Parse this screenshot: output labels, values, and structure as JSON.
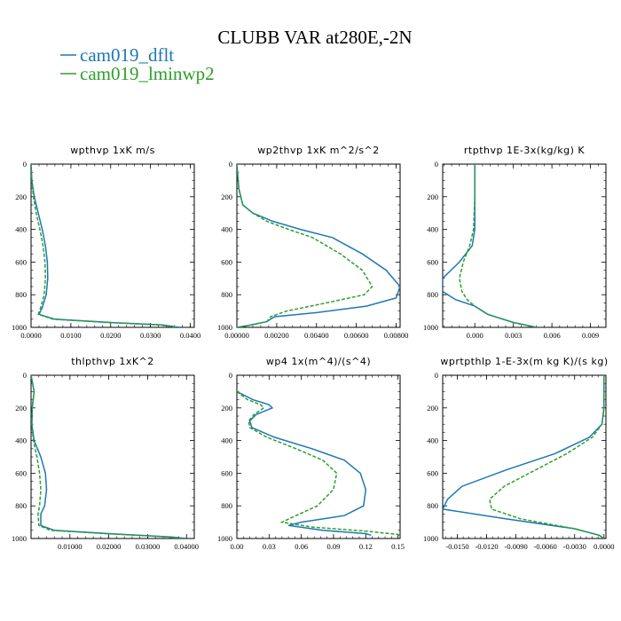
{
  "figure": {
    "title": "CLUBB VAR at280E,-2N",
    "legend": [
      {
        "label": "cam019_dflt",
        "color": "#1f77b4"
      },
      {
        "label": "cam019_lminwp2",
        "color": "#2ca02c"
      }
    ]
  },
  "chart_data": [
    {
      "type": "line",
      "title": "wpthvp  1xK m/s",
      "xlim": [
        0,
        0.041
      ],
      "ylim": [
        1000,
        0
      ],
      "y_inverted": true,
      "xticks": [
        "0.0000",
        "0.0100",
        "0.0200",
        "0.0300",
        "0.0400"
      ],
      "xtick_values": [
        0,
        0.01,
        0.02,
        0.03,
        0.04
      ],
      "yticks": [
        "0",
        "200",
        "400",
        "600",
        "800",
        "1000"
      ],
      "series": [
        {
          "name": "cam019_dflt",
          "color": "#1f77b4",
          "x": [
            0.0,
            0.0002,
            0.0008,
            0.0018,
            0.0028,
            0.0036,
            0.0041,
            0.0042,
            0.0038,
            0.0028,
            0.002,
            0.006,
            0.02,
            0.033,
            0.0372
          ],
          "y": [
            0,
            100,
            200,
            300,
            400,
            500,
            600,
            700,
            800,
            880,
            920,
            950,
            970,
            985,
            1000
          ]
        },
        {
          "name": "cam019_lminwp2",
          "color": "#2ca02c",
          "x": [
            0.0,
            0.0002,
            0.0006,
            0.0013,
            0.0022,
            0.003,
            0.0035,
            0.0036,
            0.0033,
            0.0024,
            0.0018,
            0.0055,
            0.019,
            0.032,
            0.0365
          ],
          "y": [
            0,
            100,
            200,
            300,
            400,
            500,
            600,
            700,
            800,
            880,
            920,
            950,
            970,
            985,
            1000
          ]
        }
      ]
    },
    {
      "type": "line",
      "title": "wp2thvp  1xK m^2/s^2",
      "xlim": [
        0,
        0.0082
      ],
      "ylim": [
        1000,
        0
      ],
      "y_inverted": true,
      "xticks": [
        "0.00000",
        "0.00200",
        "0.00400",
        "0.00600",
        "0.00800"
      ],
      "xtick_values": [
        0,
        0.002,
        0.004,
        0.006,
        0.008
      ],
      "yticks": [
        "0",
        "200",
        "400",
        "600",
        "800",
        "1000"
      ],
      "series": [
        {
          "name": "cam019_dflt",
          "color": "#1f77b4",
          "x": [
            0.0,
            0.0001,
            0.0003,
            0.0008,
            0.0018,
            0.0032,
            0.0048,
            0.0063,
            0.0075,
            0.0082,
            0.008,
            0.0065,
            0.004,
            0.0019,
            0.0017,
            0.0015,
            0.0005,
            0.0
          ],
          "y": [
            0,
            150,
            250,
            300,
            350,
            400,
            450,
            550,
            650,
            750,
            820,
            870,
            910,
            935,
            950,
            965,
            990,
            1000
          ]
        },
        {
          "name": "cam019_lminwp2",
          "color": "#2ca02c",
          "x": [
            0.0,
            0.0001,
            0.0003,
            0.0008,
            0.0015,
            0.0026,
            0.0038,
            0.0052,
            0.0063,
            0.0068,
            0.0064,
            0.0045,
            0.0025,
            0.0017,
            0.0016,
            0.0015,
            0.0005,
            0.0
          ],
          "y": [
            0,
            150,
            250,
            300,
            350,
            400,
            450,
            550,
            650,
            750,
            800,
            850,
            900,
            935,
            950,
            965,
            990,
            1000
          ]
        }
      ]
    },
    {
      "type": "line",
      "title": "rtpthvp  1E-3x(kg/kg) K",
      "xlim": [
        -0.0025,
        0.0102
      ],
      "ylim": [
        1000,
        0
      ],
      "y_inverted": true,
      "xticks": [
        "0.000",
        "0.003",
        "0.006",
        "0.009"
      ],
      "xtick_values": [
        0,
        0.003,
        0.006,
        0.009
      ],
      "yticks": [
        "0",
        "200",
        "400",
        "600",
        "800",
        "1000"
      ],
      "series": [
        {
          "name": "cam019_dflt",
          "color": "#1f77b4",
          "x": [
            0.0,
            0.0,
            0.0,
            -0.0002,
            -0.0012,
            -0.0025,
            -0.0025,
            -0.0015,
            0.0,
            0.001,
            0.003,
            0.0048
          ],
          "y": [
            0,
            200,
            400,
            500,
            600,
            700,
            780,
            830,
            870,
            920,
            970,
            1000
          ]
        },
        {
          "name": "cam019_lminwp2",
          "color": "#2ca02c",
          "x": [
            0.0,
            0.0,
            -0.0001,
            -0.0004,
            -0.0009,
            -0.0012,
            -0.001,
            -0.0006,
            0.0,
            0.001,
            0.003,
            0.0048
          ],
          "y": [
            0,
            200,
            400,
            500,
            600,
            700,
            780,
            830,
            870,
            920,
            970,
            1000
          ]
        }
      ]
    },
    {
      "type": "line",
      "title": "thlpthvp  1xK^2",
      "xlim": [
        0,
        0.042
      ],
      "ylim": [
        1000,
        0
      ],
      "y_inverted": true,
      "xticks": [
        "0.01000",
        "0.02000",
        "0.03000",
        "0.04000"
      ],
      "xtick_values": [
        0.01,
        0.02,
        0.03,
        0.04
      ],
      "yticks": [
        "0",
        "200",
        "400",
        "600",
        "800",
        "1000"
      ],
      "series": [
        {
          "name": "cam019_dflt",
          "color": "#1f77b4",
          "x": [
            0.0,
            0.0008,
            0.0003,
            0.0002,
            0.0008,
            0.0025,
            0.0037,
            0.004,
            0.0035,
            0.0025,
            0.0025,
            0.006,
            0.02,
            0.036,
            0.04
          ],
          "y": [
            0,
            100,
            200,
            300,
            400,
            500,
            600,
            700,
            800,
            850,
            920,
            950,
            970,
            990,
            1000
          ]
        },
        {
          "name": "cam019_lminwp2",
          "color": "#2ca02c",
          "x": [
            0.0,
            0.0008,
            0.0003,
            0.0002,
            0.0006,
            0.0015,
            0.0022,
            0.0025,
            0.0022,
            0.0018,
            0.002,
            0.005,
            0.019,
            0.035,
            0.039
          ],
          "y": [
            0,
            100,
            200,
            300,
            400,
            500,
            600,
            700,
            800,
            850,
            920,
            950,
            970,
            990,
            1000
          ]
        }
      ]
    },
    {
      "type": "line",
      "title": "wp4  1x(m^4)/(s^4)",
      "xlim": [
        0,
        0.152
      ],
      "ylim": [
        1000,
        0
      ],
      "y_inverted": true,
      "xticks": [
        "0.00",
        "0.03",
        "0.06",
        "0.09",
        "0.12",
        "0.15"
      ],
      "xtick_values": [
        0,
        0.03,
        0.06,
        0.09,
        0.12,
        0.15
      ],
      "yticks": [
        "0",
        "200",
        "400",
        "600",
        "800",
        "1000"
      ],
      "series": [
        {
          "name": "cam019_dflt",
          "color": "#1f77b4",
          "x": [
            0.0,
            0.015,
            0.03,
            0.033,
            0.018,
            0.012,
            0.014,
            0.035,
            0.07,
            0.1,
            0.115,
            0.12,
            0.118,
            0.1,
            0.06,
            0.048,
            0.08,
            0.12,
            0.125
          ],
          "y": [
            100,
            150,
            180,
            200,
            240,
            280,
            320,
            380,
            450,
            520,
            600,
            700,
            800,
            860,
            900,
            920,
            950,
            970,
            980
          ]
        },
        {
          "name": "cam019_lminwp2",
          "color": "#2ca02c",
          "x": [
            0.0,
            0.01,
            0.022,
            0.025,
            0.016,
            0.011,
            0.012,
            0.028,
            0.055,
            0.08,
            0.093,
            0.09,
            0.075,
            0.055,
            0.042,
            0.07,
            0.12,
            0.15,
            0.152
          ],
          "y": [
            100,
            150,
            180,
            200,
            240,
            280,
            320,
            380,
            450,
            520,
            600,
            700,
            800,
            860,
            900,
            930,
            955,
            975,
            985
          ]
        }
      ]
    },
    {
      "type": "line",
      "title": "wprtpthlp  1-E-3x(m kg K)/(s kg)",
      "xlim": [
        -0.0165,
        0.0002
      ],
      "ylim": [
        1000,
        0
      ],
      "y_inverted": true,
      "xticks": [
        "-0.0150",
        "-0.0120",
        "-0.0090",
        "-0.0060",
        "-0.0030",
        "0.0000"
      ],
      "xtick_values": [
        -0.015,
        -0.012,
        -0.009,
        -0.006,
        -0.003,
        0.0
      ],
      "yticks": [
        "0",
        "200",
        "400",
        "600",
        "800",
        "1000"
      ],
      "series": [
        {
          "name": "cam019_dflt",
          "color": "#1f77b4",
          "x": [
            0.0,
            0.0,
            -0.0002,
            -0.0015,
            -0.005,
            -0.01,
            -0.0145,
            -0.016,
            -0.0165,
            -0.01,
            -0.003,
            -0.0005,
            0.0
          ],
          "y": [
            0,
            200,
            300,
            380,
            480,
            580,
            680,
            760,
            820,
            880,
            940,
            980,
            1000
          ]
        },
        {
          "name": "cam019_lminwp2",
          "color": "#2ca02c",
          "x": [
            0.0,
            0.0,
            -0.0002,
            -0.0012,
            -0.0038,
            -0.007,
            -0.0102,
            -0.0117,
            -0.0115,
            -0.0085,
            -0.003,
            -0.0005,
            0.0
          ],
          "y": [
            0,
            200,
            300,
            380,
            480,
            580,
            680,
            760,
            820,
            880,
            940,
            980,
            1000
          ]
        }
      ]
    }
  ]
}
